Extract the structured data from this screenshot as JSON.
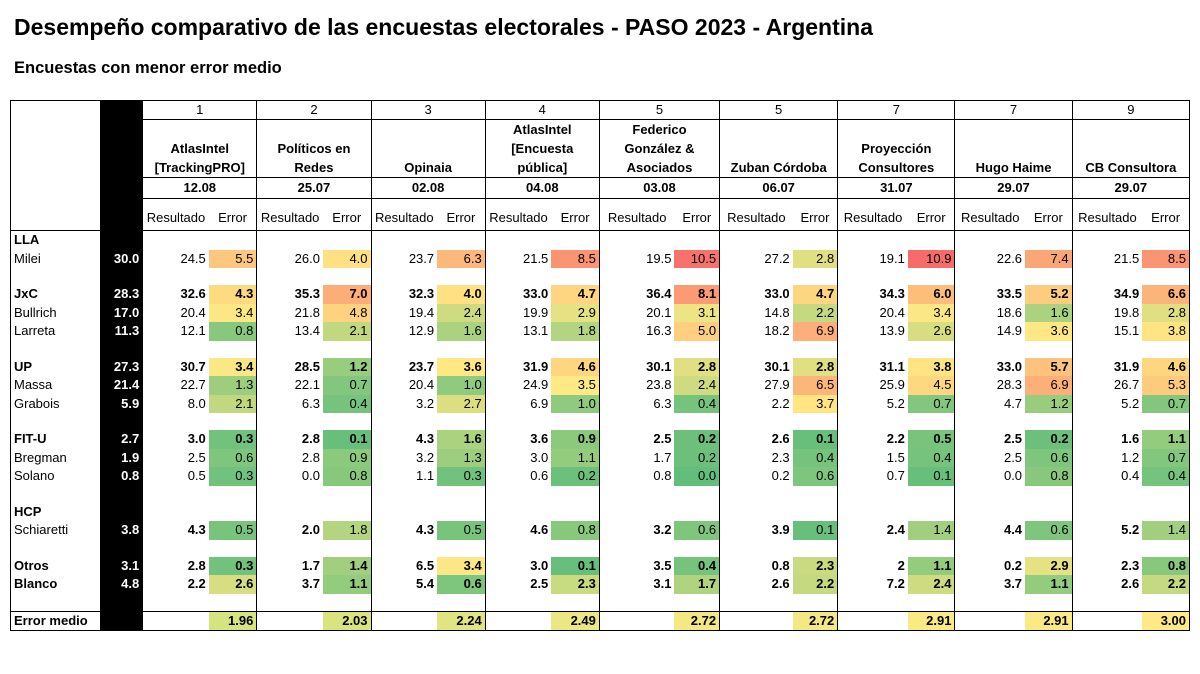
{
  "title": "Desempeño comparativo de las encuestas electorales - PASO 2023 - Argentina",
  "subtitle": "Encuestas con menor error medio",
  "headers": {
    "resultado": "Resultado",
    "error": "Error"
  },
  "pollsters": [
    {
      "rank": "1",
      "name": "AtlasIntel [TrackingPRO]",
      "date": "12.08"
    },
    {
      "rank": "2",
      "name": "Políticos en Redes",
      "date": "25.07"
    },
    {
      "rank": "3",
      "name": "Opinaia",
      "date": "02.08"
    },
    {
      "rank": "4",
      "name": "AtlasIntel [Encuesta pública]",
      "date": "04.08"
    },
    {
      "rank": "5",
      "name": "Federico González & Asociados",
      "date": "03.08"
    },
    {
      "rank": "5",
      "name": "Zuban Córdoba",
      "date": "06.07"
    },
    {
      "rank": "7",
      "name": "Proyección Consultores",
      "date": "31.07"
    },
    {
      "rank": "7",
      "name": "Hugo Haime",
      "date": "29.07"
    },
    {
      "rank": "9",
      "name": "CB Consultora",
      "date": "29.07"
    }
  ],
  "rows": [
    {
      "type": "group",
      "label": "LLA"
    },
    {
      "type": "data",
      "label": "Milei",
      "bold": false,
      "actual": "30.0",
      "cells": [
        [
          "24.5",
          "5.5"
        ],
        [
          "26.0",
          "4.0"
        ],
        [
          "23.7",
          "6.3"
        ],
        [
          "21.5",
          "8.5"
        ],
        [
          "19.5",
          "10.5"
        ],
        [
          "27.2",
          "2.8"
        ],
        [
          "19.1",
          "10.9"
        ],
        [
          "22.6",
          "7.4"
        ],
        [
          "21.5",
          "8.5"
        ]
      ]
    },
    {
      "type": "spacer"
    },
    {
      "type": "data",
      "label": "JxC",
      "bold": true,
      "actual": "28.3",
      "cells": [
        [
          "32.6",
          "4.3"
        ],
        [
          "35.3",
          "7.0"
        ],
        [
          "32.3",
          "4.0"
        ],
        [
          "33.0",
          "4.7"
        ],
        [
          "36.4",
          "8.1"
        ],
        [
          "33.0",
          "4.7"
        ],
        [
          "34.3",
          "6.0"
        ],
        [
          "33.5",
          "5.2"
        ],
        [
          "34.9",
          "6.6"
        ]
      ]
    },
    {
      "type": "data",
      "label": "Bullrich",
      "bold": false,
      "actual": "17.0",
      "cells": [
        [
          "20.4",
          "3.4"
        ],
        [
          "21.8",
          "4.8"
        ],
        [
          "19.4",
          "2.4"
        ],
        [
          "19.9",
          "2.9"
        ],
        [
          "20.1",
          "3.1"
        ],
        [
          "14.8",
          "2.2"
        ],
        [
          "20.4",
          "3.4"
        ],
        [
          "18.6",
          "1.6"
        ],
        [
          "19.8",
          "2.8"
        ]
      ]
    },
    {
      "type": "data",
      "label": "Larreta",
      "bold": false,
      "actual": "11.3",
      "cells": [
        [
          "12.1",
          "0.8"
        ],
        [
          "13.4",
          "2.1"
        ],
        [
          "12.9",
          "1.6"
        ],
        [
          "13.1",
          "1.8"
        ],
        [
          "16.3",
          "5.0"
        ],
        [
          "18.2",
          "6.9"
        ],
        [
          "13.9",
          "2.6"
        ],
        [
          "14.9",
          "3.6"
        ],
        [
          "15.1",
          "3.8"
        ]
      ]
    },
    {
      "type": "spacer"
    },
    {
      "type": "data",
      "label": "UP",
      "bold": true,
      "actual": "27.3",
      "cells": [
        [
          "30.7",
          "3.4"
        ],
        [
          "28.5",
          "1.2"
        ],
        [
          "23.7",
          "3.6"
        ],
        [
          "31.9",
          "4.6"
        ],
        [
          "30.1",
          "2.8"
        ],
        [
          "30.1",
          "2.8"
        ],
        [
          "31.1",
          "3.8"
        ],
        [
          "33.0",
          "5.7"
        ],
        [
          "31.9",
          "4.6"
        ]
      ]
    },
    {
      "type": "data",
      "label": "Massa",
      "bold": false,
      "actual": "21.4",
      "cells": [
        [
          "22.7",
          "1.3"
        ],
        [
          "22.1",
          "0.7"
        ],
        [
          "20.4",
          "1.0"
        ],
        [
          "24.9",
          "3.5"
        ],
        [
          "23.8",
          "2.4"
        ],
        [
          "27.9",
          "6.5"
        ],
        [
          "25.9",
          "4.5"
        ],
        [
          "28.3",
          "6.9"
        ],
        [
          "26.7",
          "5.3"
        ]
      ]
    },
    {
      "type": "data",
      "label": "Grabois",
      "bold": false,
      "actual": "5.9",
      "cells": [
        [
          "8.0",
          "2.1"
        ],
        [
          "6.3",
          "0.4"
        ],
        [
          "3.2",
          "2.7"
        ],
        [
          "6.9",
          "1.0"
        ],
        [
          "6.3",
          "0.4"
        ],
        [
          "2.2",
          "3.7"
        ],
        [
          "5.2",
          "0.7"
        ],
        [
          "4.7",
          "1.2"
        ],
        [
          "5.2",
          "0.7"
        ]
      ]
    },
    {
      "type": "spacer"
    },
    {
      "type": "data",
      "label": "FIT-U",
      "bold": true,
      "actual": "2.7",
      "cells": [
        [
          "3.0",
          "0.3"
        ],
        [
          "2.8",
          "0.1"
        ],
        [
          "4.3",
          "1.6"
        ],
        [
          "3.6",
          "0.9"
        ],
        [
          "2.5",
          "0.2"
        ],
        [
          "2.6",
          "0.1"
        ],
        [
          "2.2",
          "0.5"
        ],
        [
          "2.5",
          "0.2"
        ],
        [
          "1.6",
          "1.1"
        ]
      ]
    },
    {
      "type": "data",
      "label": "Bregman",
      "bold": false,
      "actual": "1.9",
      "cells": [
        [
          "2.5",
          "0.6"
        ],
        [
          "2.8",
          "0.9"
        ],
        [
          "3.2",
          "1.3"
        ],
        [
          "3.0",
          "1.1"
        ],
        [
          "1.7",
          "0.2"
        ],
        [
          "2.3",
          "0.4"
        ],
        [
          "1.5",
          "0.4"
        ],
        [
          "2.5",
          "0.6"
        ],
        [
          "1.2",
          "0.7"
        ]
      ]
    },
    {
      "type": "data",
      "label": "Solano",
      "bold": false,
      "actual": "0.8",
      "cells": [
        [
          "0.5",
          "0.3"
        ],
        [
          "0.0",
          "0.8"
        ],
        [
          "1.1",
          "0.3"
        ],
        [
          "0.6",
          "0.2"
        ],
        [
          "0.8",
          "0.0"
        ],
        [
          "0.2",
          "0.6"
        ],
        [
          "0.7",
          "0.1"
        ],
        [
          "0.0",
          "0.8"
        ],
        [
          "0.4",
          "0.4"
        ]
      ]
    },
    {
      "type": "spacer"
    },
    {
      "type": "group",
      "label": "HCP"
    },
    {
      "type": "data",
      "label": "Schiaretti",
      "bold": false,
      "actual": "3.8",
      "boldvals": true,
      "cells": [
        [
          "4.3",
          "0.5"
        ],
        [
          "2.0",
          "1.8"
        ],
        [
          "4.3",
          "0.5"
        ],
        [
          "4.6",
          "0.8"
        ],
        [
          "3.2",
          "0.6"
        ],
        [
          "3.9",
          "0.1"
        ],
        [
          "2.4",
          "1.4"
        ],
        [
          "4.4",
          "0.6"
        ],
        [
          "5.2",
          "1.4"
        ]
      ]
    },
    {
      "type": "spacer"
    },
    {
      "type": "data",
      "label": "Otros",
      "bold": true,
      "actual": "3.1",
      "cells": [
        [
          "2.8",
          "0.3"
        ],
        [
          "1.7",
          "1.4"
        ],
        [
          "6.5",
          "3.4"
        ],
        [
          "3.0",
          "0.1"
        ],
        [
          "3.5",
          "0.4"
        ],
        [
          "0.8",
          "2.3"
        ],
        [
          "2",
          "1.1"
        ],
        [
          "0.2",
          "2.9"
        ],
        [
          "2.3",
          "0.8"
        ]
      ]
    },
    {
      "type": "data",
      "label": "Blanco",
      "bold": true,
      "actual": "4.8",
      "cells": [
        [
          "2.2",
          "2.6"
        ],
        [
          "3.7",
          "1.1"
        ],
        [
          "5.4",
          "0.6"
        ],
        [
          "2.5",
          "2.3"
        ],
        [
          "3.1",
          "1.7"
        ],
        [
          "2.6",
          "2.2"
        ],
        [
          "7.2",
          "2.4"
        ],
        [
          "3.7",
          "1.1"
        ],
        [
          "2.6",
          "2.2"
        ]
      ]
    },
    {
      "type": "spacer"
    }
  ],
  "error_medio": {
    "label": "Error medio",
    "values": [
      "1.96",
      "2.03",
      "2.24",
      "2.49",
      "2.72",
      "2.72",
      "2.91",
      "2.91",
      "3.00"
    ]
  },
  "colors": {
    "green": "#63be7b",
    "yellow": "#ffe984",
    "red": "#f8696b"
  }
}
